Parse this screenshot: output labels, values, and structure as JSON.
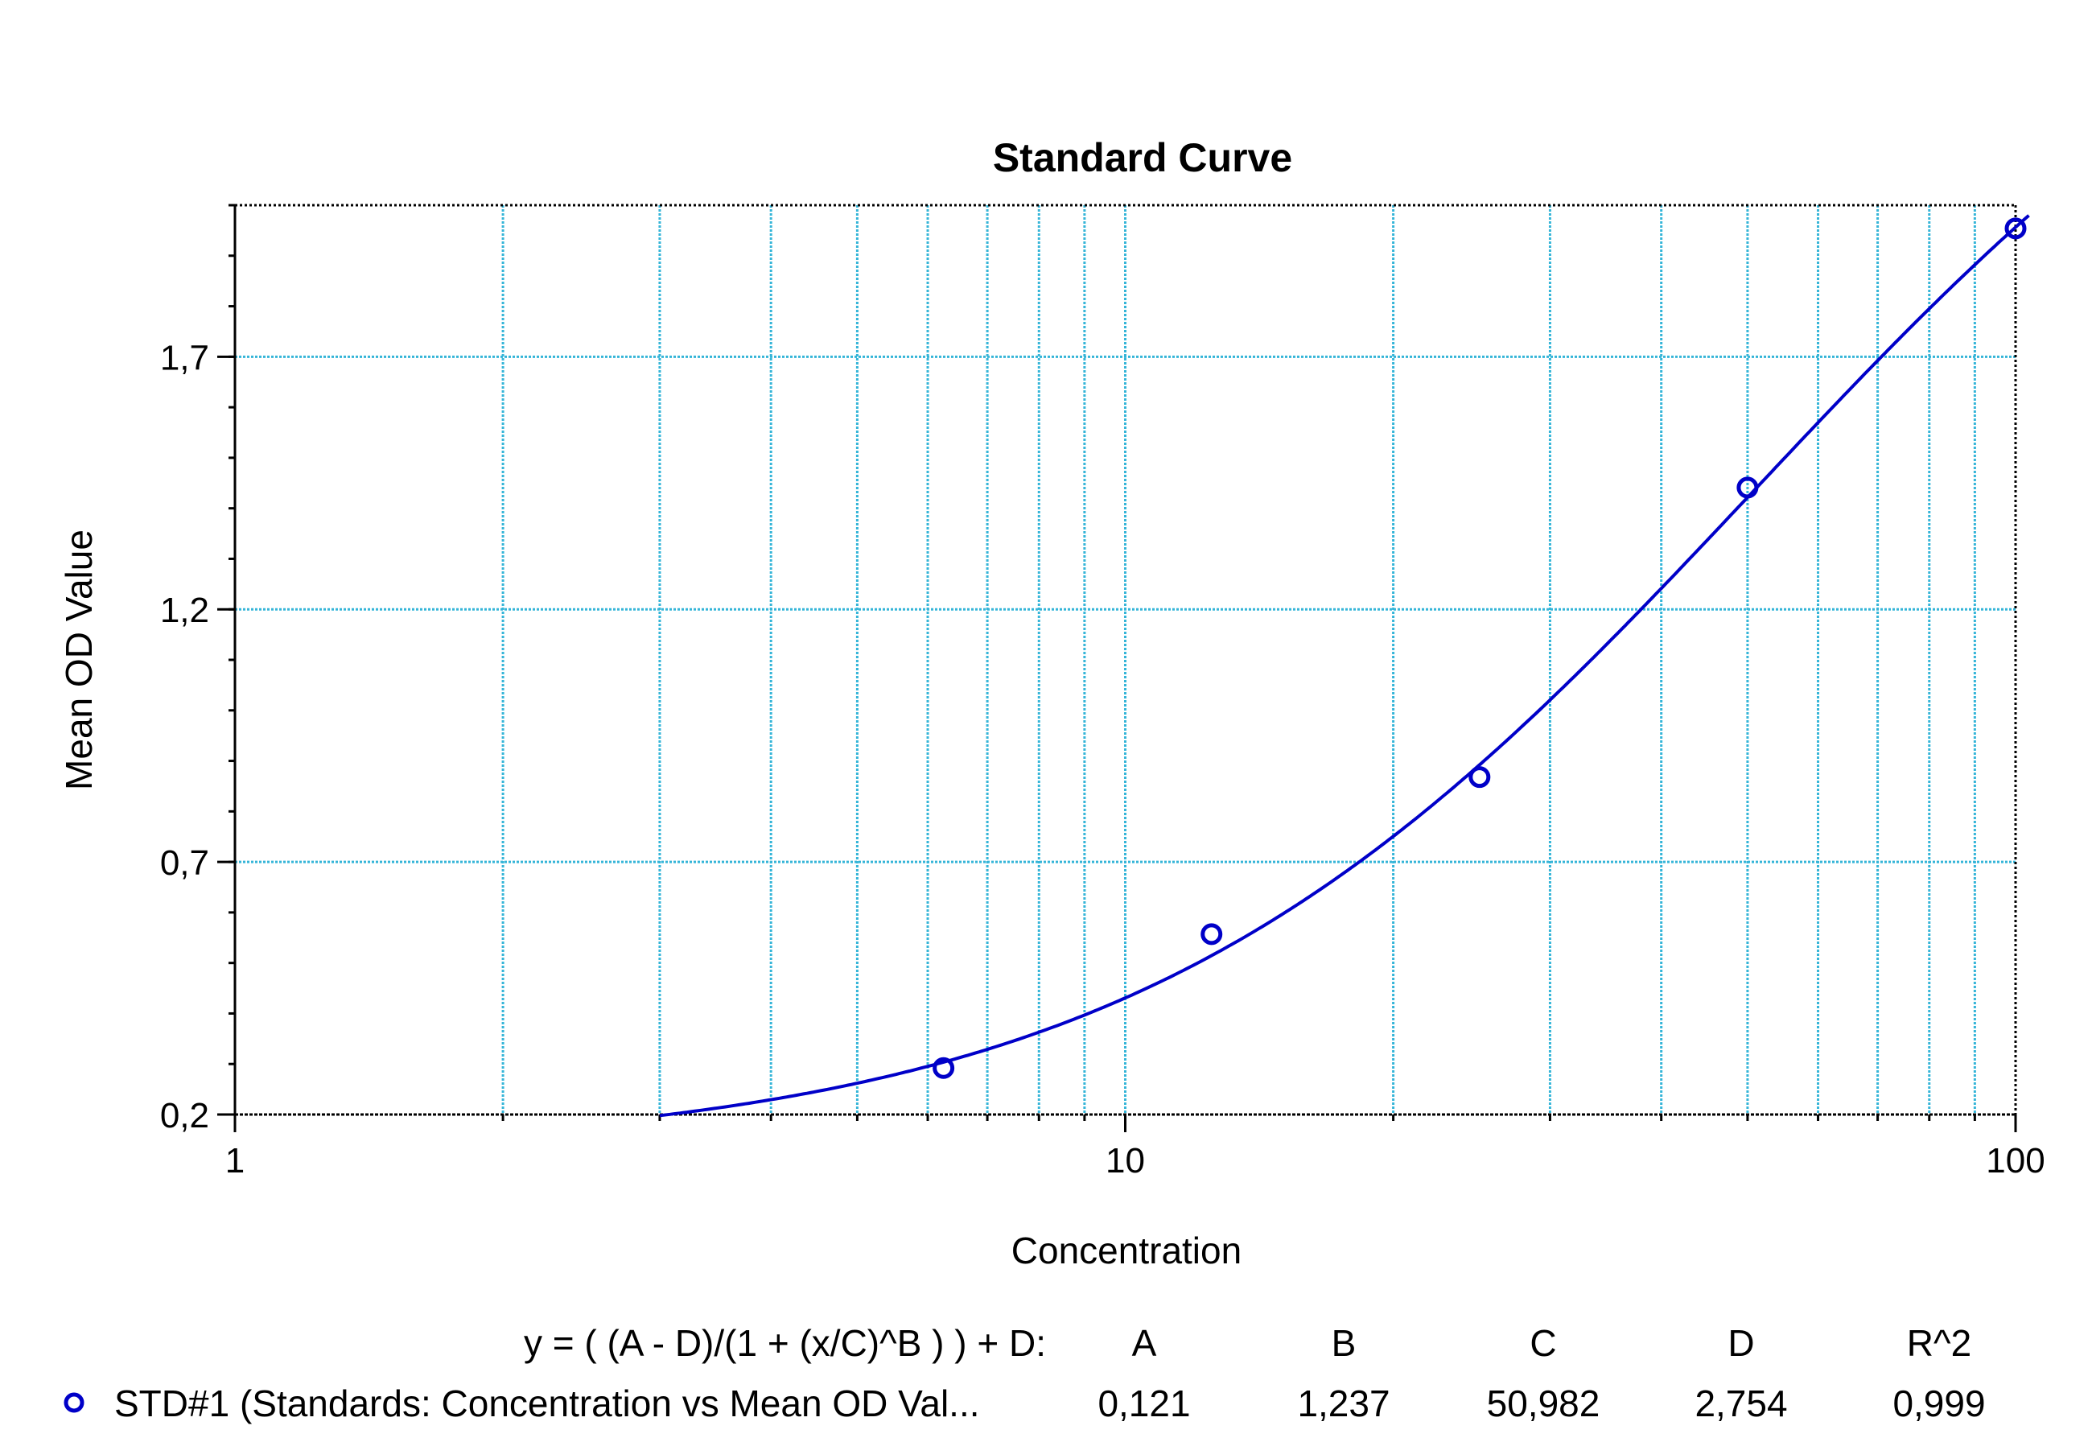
{
  "chart_data": {
    "type": "scatter",
    "title": "Standard Curve",
    "xlabel": "Concentration",
    "ylabel": "Mean OD Value",
    "x_scale": "log",
    "xlim": [
      1,
      100
    ],
    "ylim": [
      0.2,
      2.0
    ],
    "x_ticks": [
      {
        "value": 1,
        "label": "1"
      },
      {
        "value": 10,
        "label": "10"
      },
      {
        "value": 100,
        "label": "100"
      }
    ],
    "y_ticks": [
      {
        "value": 0.2,
        "label": "0,2"
      },
      {
        "value": 0.7,
        "label": "0,7"
      },
      {
        "value": 1.2,
        "label": "1,2"
      },
      {
        "value": 1.7,
        "label": "1,7"
      }
    ],
    "grid": true,
    "series": [
      {
        "name": "STD#1 (Standards: Concentration vs Mean OD Val...",
        "color": "#0000c8",
        "points": [
          {
            "x": 6.25,
            "y": 0.292
          },
          {
            "x": 12.5,
            "y": 0.557
          },
          {
            "x": 25,
            "y": 0.868
          },
          {
            "x": 50,
            "y": 1.441
          },
          {
            "x": 100,
            "y": 1.954
          }
        ],
        "fit": {
          "model": "4PL",
          "A": 0.121,
          "B": 1.237,
          "C": 50.982,
          "D": 2.754
        }
      }
    ],
    "legend": {
      "placement": "bottom",
      "equation": "y = ( (A - D)/(1 + (x/C)^B ) ) + D:",
      "headers": [
        "A",
        "B",
        "C",
        "D",
        "R^2"
      ],
      "values": [
        "0,121",
        "1,237",
        "50,982",
        "2,754",
        "0,999"
      ]
    },
    "colors": {
      "grid": "#35b5d8",
      "series": "#0000c8",
      "axis": "#000000"
    }
  }
}
